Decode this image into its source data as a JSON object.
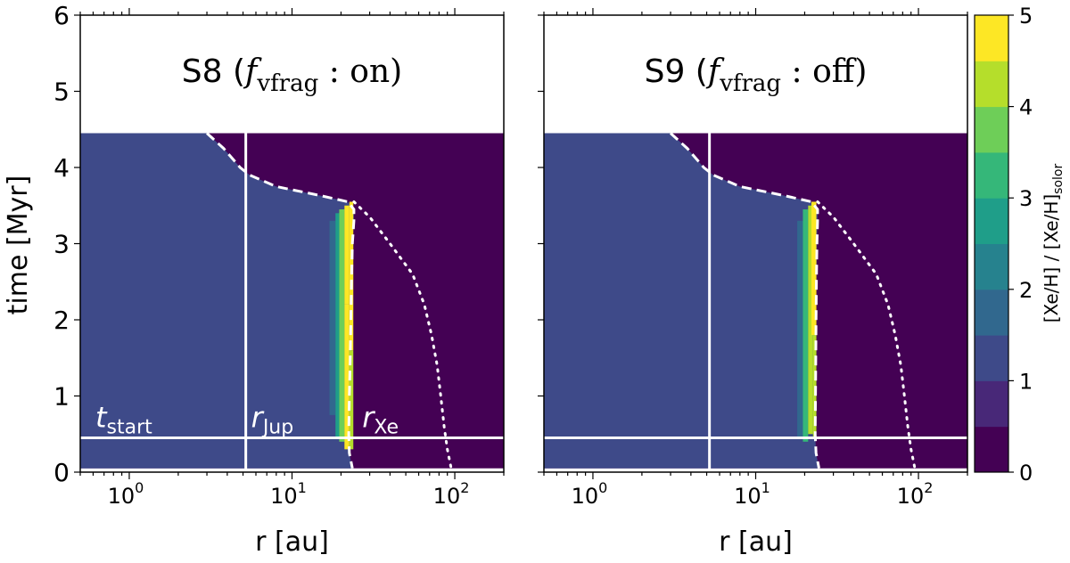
{
  "chart_data": {
    "type": "heatmap",
    "shared": {
      "xlabel": "r [au]",
      "ylabel": "time [Myr]",
      "xscale": "log",
      "xlim": [
        0.5,
        200
      ],
      "ylim": [
        0,
        6
      ],
      "xticks": [
        1,
        10,
        100
      ],
      "xtick_labels": [
        {
          "base": "10",
          "exp": "0"
        },
        {
          "base": "10",
          "exp": "1"
        },
        {
          "base": "10",
          "exp": "2"
        }
      ],
      "yticks": [
        0,
        1,
        2,
        3,
        4,
        5,
        6
      ],
      "ytick_labels": [
        "0",
        "1",
        "2",
        "3",
        "4",
        "5",
        "6"
      ],
      "data_time_range": [
        0.05,
        4.45
      ],
      "background_levels": {
        "inner": 1,
        "outer": 0
      },
      "r_jup": 5.2,
      "t_start": 0.45,
      "line_labels": {
        "t_start": {
          "base": "t",
          "sub": "start"
        },
        "r_jup": {
          "base": "r",
          "sub": "Jup"
        },
        "r_xe": {
          "base": "r",
          "sub": "Xe"
        }
      }
    },
    "colorbar": {
      "label": "[Xe/H] / [Xe/H]",
      "label_sub": "solor",
      "range": [
        0,
        5
      ],
      "ticks": [
        "0",
        "1",
        "2",
        "3",
        "4",
        "5"
      ],
      "colors": [
        "#440154",
        "#482878",
        "#3e4a89",
        "#31688e",
        "#26828e",
        "#1f9e89",
        "#35b779",
        "#6ece58",
        "#b5de2b",
        "#fde725"
      ]
    },
    "panels": [
      {
        "title_prefix": "S8 (",
        "title_var": "f",
        "title_sub": "vfrag",
        "title_suffix": " : on)",
        "boundary_dashed": [
          [
            3.0,
            4.45
          ],
          [
            3.8,
            4.25
          ],
          [
            4.8,
            4.0
          ],
          [
            5.5,
            3.9
          ],
          [
            8,
            3.75
          ],
          [
            15,
            3.63
          ],
          [
            22,
            3.55
          ],
          [
            24,
            3.45
          ],
          [
            24,
            3.3
          ],
          [
            23.5,
            3.0
          ],
          [
            23.2,
            2.5
          ],
          [
            23,
            2.0
          ],
          [
            22.8,
            1.5
          ],
          [
            22.5,
            1.0
          ],
          [
            22.3,
            0.5
          ],
          [
            22.5,
            0.25
          ],
          [
            23.5,
            0.05
          ]
        ],
        "evap_dotted": [
          [
            24,
            3.55
          ],
          [
            30,
            3.35
          ],
          [
            40,
            3.0
          ],
          [
            55,
            2.6
          ],
          [
            65,
            2.2
          ],
          [
            72,
            1.8
          ],
          [
            78,
            1.4
          ],
          [
            82,
            1.0
          ],
          [
            86,
            0.6
          ],
          [
            90,
            0.3
          ],
          [
            95,
            0.05
          ]
        ],
        "cells": [
          {
            "r0": 17.0,
            "r1": 18.5,
            "t0": 0.75,
            "t1": 3.3,
            "v": 1.8
          },
          {
            "r0": 18.5,
            "r1": 19.5,
            "t0": 0.45,
            "t1": 3.4,
            "v": 2.8
          },
          {
            "r0": 19.5,
            "r1": 21.0,
            "t0": 0.4,
            "t1": 3.45,
            "v": 3.8
          },
          {
            "r0": 21.0,
            "r1": 22.5,
            "t0": 0.3,
            "t1": 2.2,
            "v": 4.6
          },
          {
            "r0": 21.0,
            "r1": 22.5,
            "t0": 2.2,
            "t1": 3.5,
            "v": 5.0
          },
          {
            "r0": 22.5,
            "r1": 23.8,
            "t0": 1.6,
            "t1": 3.55,
            "v": 5.0
          },
          {
            "r0": 22.5,
            "r1": 23.8,
            "t0": 0.3,
            "t1": 1.6,
            "v": 4.0
          }
        ]
      },
      {
        "title_prefix": "S9 (",
        "title_var": "f",
        "title_sub": "vfrag",
        "title_suffix": " : off)",
        "boundary_dashed": [
          [
            3.0,
            4.45
          ],
          [
            3.8,
            4.25
          ],
          [
            4.8,
            4.0
          ],
          [
            5.5,
            3.9
          ],
          [
            8,
            3.75
          ],
          [
            15,
            3.63
          ],
          [
            22,
            3.55
          ],
          [
            24,
            3.45
          ],
          [
            24,
            3.3
          ],
          [
            23.8,
            3.0
          ],
          [
            23.6,
            2.5
          ],
          [
            23.5,
            2.0
          ],
          [
            23.4,
            1.5
          ],
          [
            23.3,
            1.0
          ],
          [
            23.2,
            0.5
          ],
          [
            23.5,
            0.25
          ],
          [
            24.5,
            0.05
          ]
        ],
        "evap_dotted": [
          [
            24,
            3.55
          ],
          [
            30,
            3.35
          ],
          [
            40,
            3.0
          ],
          [
            55,
            2.6
          ],
          [
            65,
            2.2
          ],
          [
            72,
            1.8
          ],
          [
            78,
            1.4
          ],
          [
            82,
            1.0
          ],
          [
            86,
            0.6
          ],
          [
            90,
            0.3
          ],
          [
            95,
            0.05
          ]
        ],
        "cells": [
          {
            "r0": 18.0,
            "r1": 19.5,
            "t0": 0.45,
            "t1": 3.3,
            "v": 1.6
          },
          {
            "r0": 19.5,
            "r1": 21.0,
            "t0": 0.4,
            "t1": 3.45,
            "v": 3.0
          },
          {
            "r0": 21.0,
            "r1": 22.5,
            "t0": 0.5,
            "t1": 3.5,
            "v": 4.2
          },
          {
            "r0": 22.0,
            "r1": 23.6,
            "t0": 1.8,
            "t1": 3.55,
            "v": 5.0
          },
          {
            "r0": 22.5,
            "r1": 23.6,
            "t0": 0.45,
            "t1": 1.8,
            "v": 4.0
          }
        ]
      }
    ]
  }
}
